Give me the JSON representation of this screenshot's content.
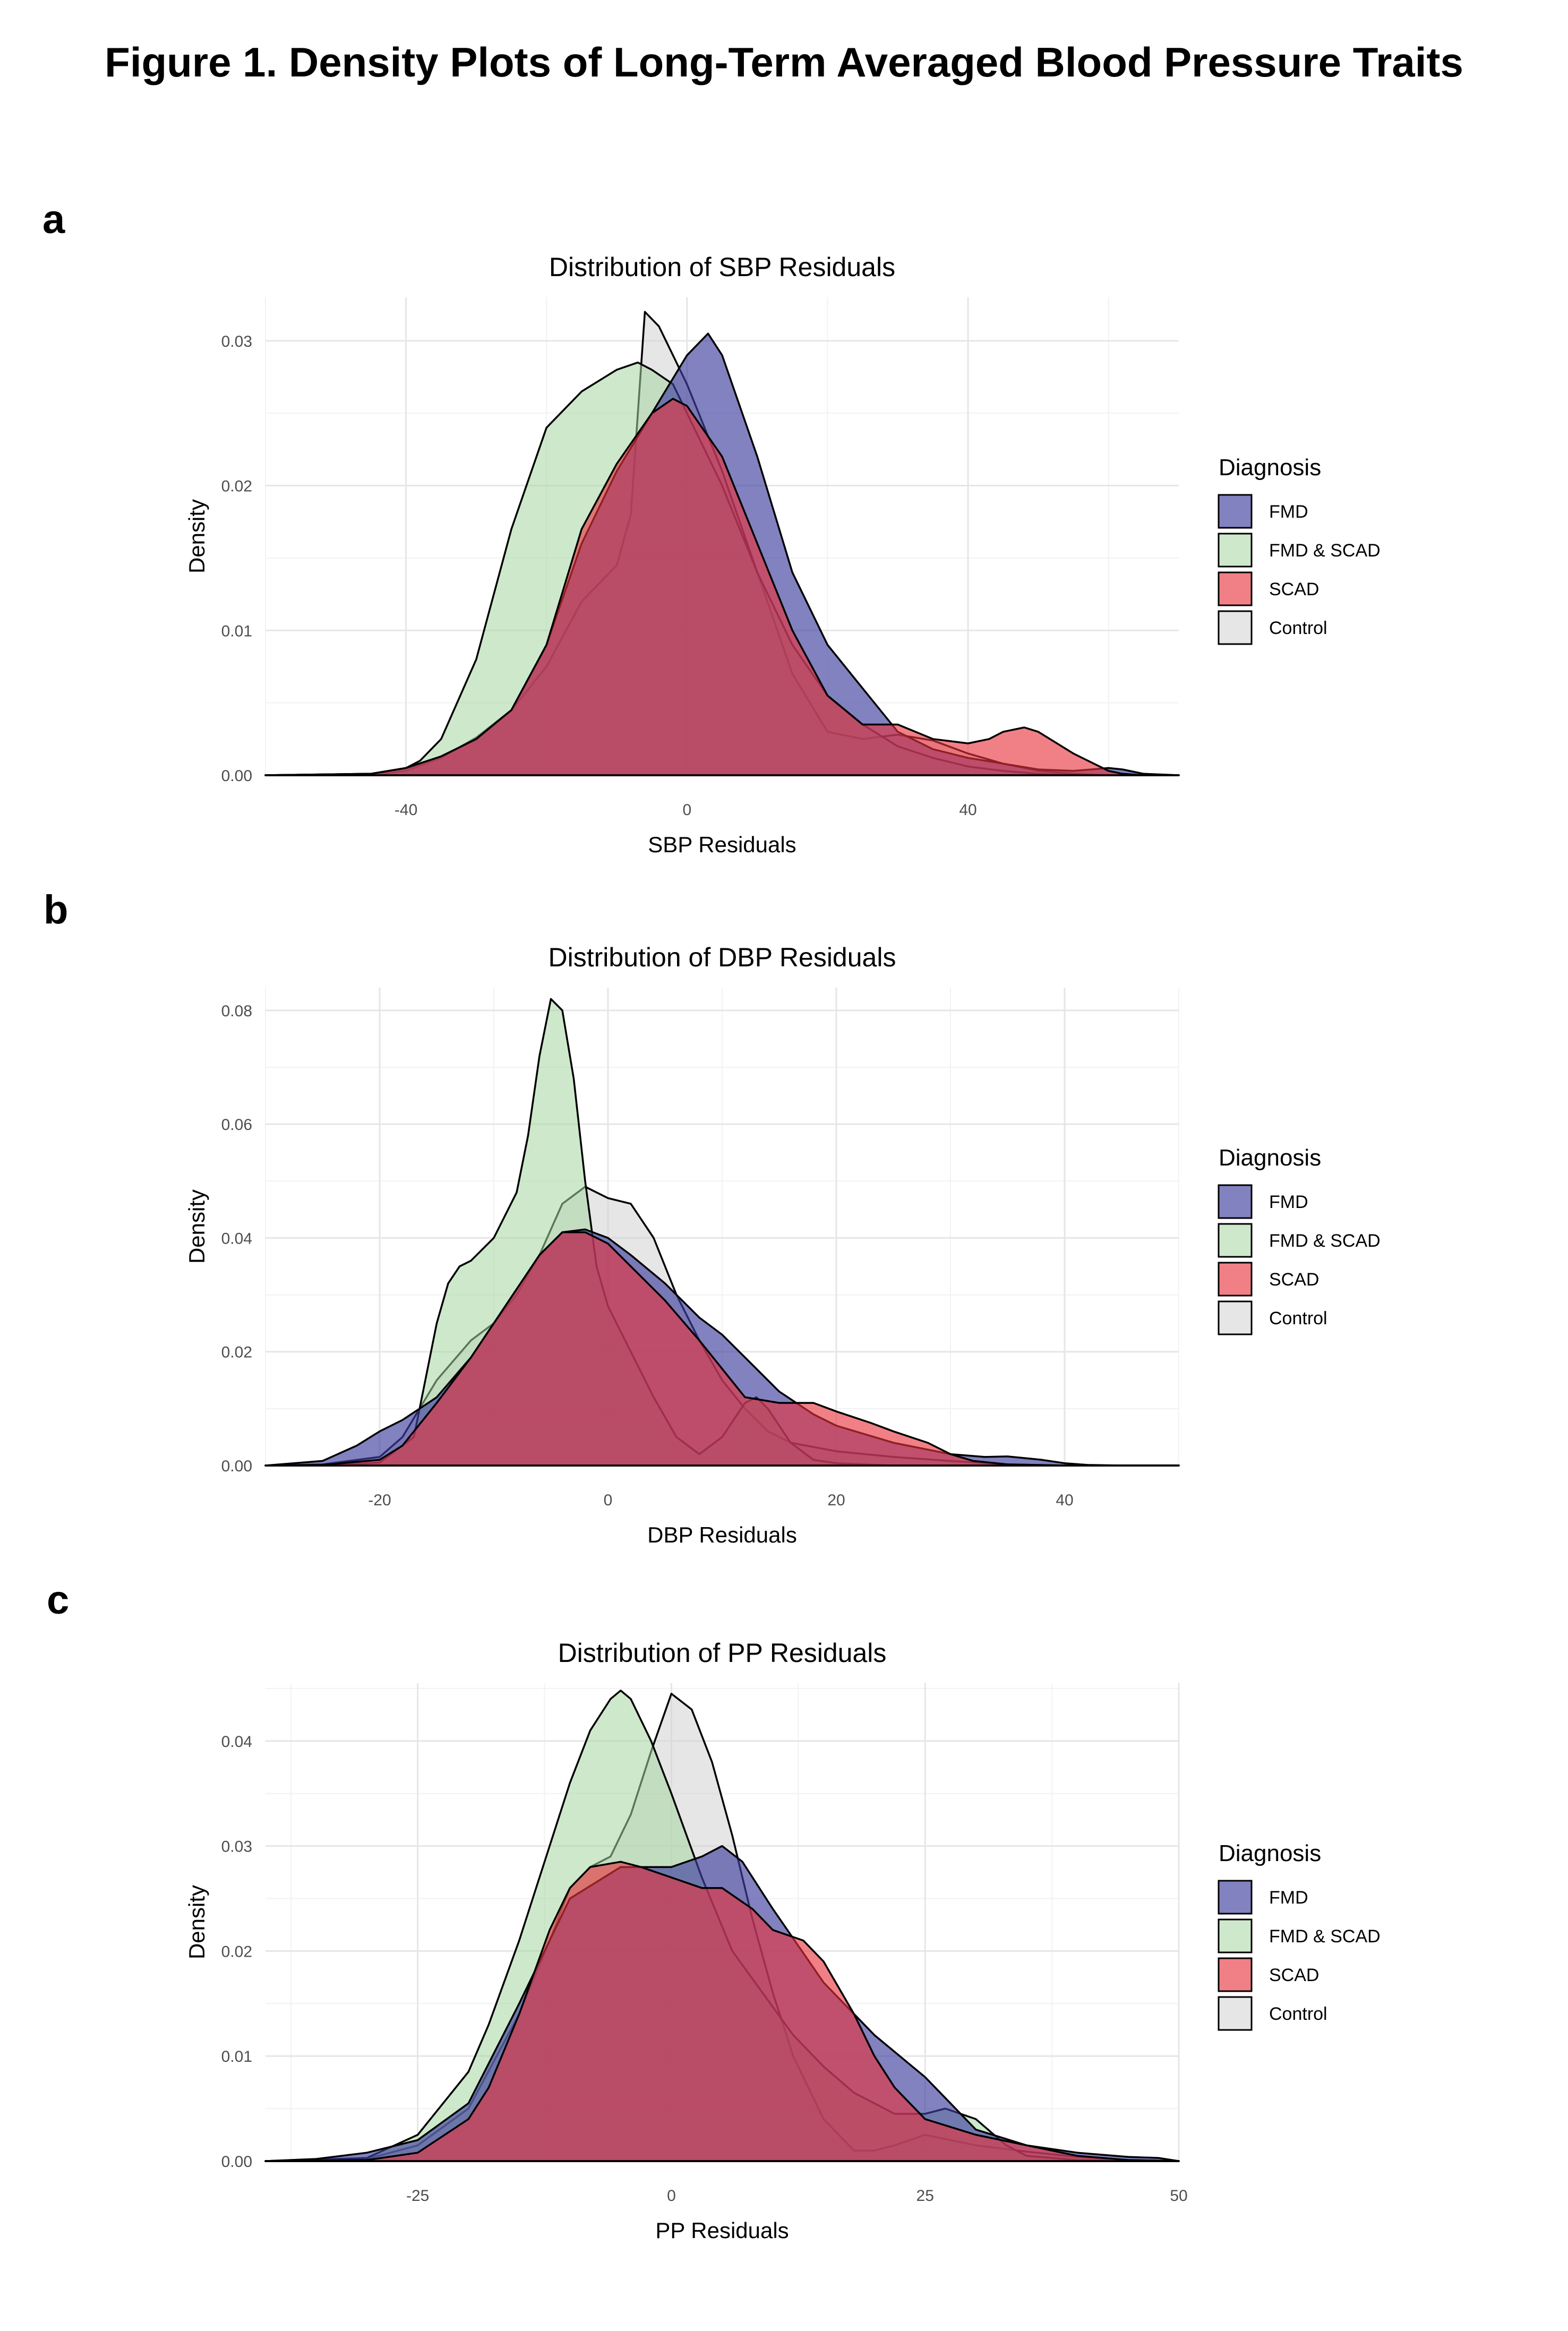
{
  "figure_title": "Figure 1. Density Plots of Long-Term Averaged Blood Pressure Traits",
  "legend_title": "Diagnosis",
  "group_colors": {
    "FMD": "#3f3f9f",
    "FMD & SCAD": "#a5d6a0",
    "SCAD": "#e8323c",
    "Control": "#d2d2d2"
  },
  "group_opacity": {
    "FMD": 0.65,
    "FMD & SCAD": 0.55,
    "SCAD": 0.62,
    "Control": 0.55
  },
  "chart_data": [
    {
      "panel_label": "a",
      "type": "area",
      "title": "Distribution of SBP Residuals",
      "xlabel": "SBP Residuals",
      "ylabel": "Density",
      "xlim": [
        -60,
        70
      ],
      "ylim": [
        0,
        0.033
      ],
      "xticks": [
        -40,
        0,
        40
      ],
      "xtick_labels": [
        "-40",
        "0",
        "40"
      ],
      "yticks": [
        0,
        0.01,
        0.02,
        0.03
      ],
      "ytick_labels": [
        "0.00",
        "0.01",
        "0.02",
        "0.03"
      ],
      "grid": true,
      "legend": [
        "FMD",
        "FMD & SCAD",
        "SCAD",
        "Control"
      ],
      "series": [
        {
          "name": "Control",
          "x": [
            -60,
            -45,
            -40,
            -35,
            -30,
            -25,
            -20,
            -15,
            -10,
            -8,
            -6,
            -4,
            -2,
            0,
            5,
            10,
            15,
            20,
            25,
            30,
            35,
            40,
            45,
            50,
            55,
            60,
            65,
            70
          ],
          "y": [
            0,
            0,
            0.0003,
            0.0012,
            0.0026,
            0.0045,
            0.0075,
            0.012,
            0.0145,
            0.018,
            0.032,
            0.031,
            0.029,
            0.027,
            0.021,
            0.014,
            0.007,
            0.003,
            0.0025,
            0.0028,
            0.0024,
            0.0015,
            0.0008,
            0.0003,
            0.0001,
            0,
            0,
            0
          ]
        },
        {
          "name": "FMD & SCAD",
          "x": [
            -60,
            -45,
            -40,
            -38,
            -35,
            -30,
            -25,
            -20,
            -15,
            -10,
            -7,
            -5,
            -2,
            0,
            5,
            10,
            15,
            20,
            25,
            30,
            35,
            40,
            45,
            50,
            55,
            60,
            65,
            70
          ],
          "y": [
            0,
            0.0001,
            0.0005,
            0.001,
            0.0025,
            0.008,
            0.017,
            0.024,
            0.0265,
            0.028,
            0.0285,
            0.028,
            0.027,
            0.025,
            0.02,
            0.014,
            0.009,
            0.0055,
            0.0035,
            0.002,
            0.0012,
            0.0006,
            0.0003,
            0.0001,
            0,
            0,
            0,
            0
          ]
        },
        {
          "name": "FMD",
          "x": [
            -60,
            -45,
            -40,
            -35,
            -30,
            -25,
            -20,
            -15,
            -10,
            -5,
            0,
            3,
            5,
            10,
            15,
            20,
            25,
            30,
            35,
            40,
            45,
            50,
            55,
            60,
            62,
            65,
            70
          ],
          "y": [
            0,
            0.0001,
            0.0005,
            0.0013,
            0.0025,
            0.0045,
            0.009,
            0.016,
            0.021,
            0.025,
            0.029,
            0.0305,
            0.029,
            0.022,
            0.014,
            0.009,
            0.006,
            0.003,
            0.0018,
            0.0012,
            0.0008,
            0.0004,
            0.0003,
            0.0005,
            0.0004,
            0.0001,
            0
          ]
        },
        {
          "name": "SCAD",
          "x": [
            -60,
            -45,
            -40,
            -35,
            -30,
            -25,
            -20,
            -15,
            -10,
            -5,
            -2,
            0,
            5,
            10,
            15,
            20,
            25,
            30,
            35,
            40,
            43,
            45,
            48,
            50,
            55,
            60,
            62,
            65,
            70
          ],
          "y": [
            0,
            0.0001,
            0.0005,
            0.0013,
            0.0025,
            0.0045,
            0.009,
            0.017,
            0.0215,
            0.025,
            0.026,
            0.0255,
            0.022,
            0.016,
            0.01,
            0.0055,
            0.0035,
            0.0035,
            0.0025,
            0.0022,
            0.0025,
            0.003,
            0.0033,
            0.003,
            0.0015,
            0.0003,
            0.0001,
            0,
            0
          ]
        }
      ]
    },
    {
      "panel_label": "b",
      "type": "area",
      "title": "Distribution of DBP Residuals",
      "xlabel": "DBP Residuals",
      "ylabel": "Density",
      "xlim": [
        -30,
        50
      ],
      "ylim": [
        0,
        0.084
      ],
      "xticks": [
        -20,
        0,
        20,
        40
      ],
      "xtick_labels": [
        "-20",
        "0",
        "20",
        "40"
      ],
      "yticks": [
        0,
        0.02,
        0.04,
        0.06,
        0.08
      ],
      "ytick_labels": [
        "0.00",
        "0.02",
        "0.04",
        "0.06",
        "0.08"
      ],
      "grid": true,
      "legend": [
        "FMD",
        "FMD & SCAD",
        "SCAD",
        "Control"
      ],
      "series": [
        {
          "name": "Control",
          "x": [
            -30,
            -25,
            -20,
            -18,
            -15,
            -12,
            -10,
            -8,
            -6,
            -4,
            -2,
            0,
            2,
            4,
            6,
            8,
            10,
            12,
            14,
            16,
            20,
            25,
            30,
            35,
            40,
            45,
            50
          ],
          "y": [
            0,
            0.0002,
            0.0015,
            0.005,
            0.015,
            0.022,
            0.025,
            0.03,
            0.037,
            0.046,
            0.049,
            0.047,
            0.046,
            0.04,
            0.03,
            0.022,
            0.015,
            0.01,
            0.006,
            0.004,
            0.0025,
            0.0015,
            0.0008,
            0.0002,
            0,
            0,
            0
          ]
        },
        {
          "name": "FMD & SCAD",
          "x": [
            -30,
            -25,
            -20,
            -17,
            -16,
            -15,
            -14,
            -13,
            -12,
            -10,
            -8,
            -7,
            -6,
            -5,
            -4,
            -3,
            -2,
            -1,
            0,
            2,
            4,
            6,
            8,
            10,
            12,
            13,
            14,
            16,
            18,
            20,
            25,
            30,
            35,
            40,
            50
          ],
          "y": [
            0,
            0,
            0.0005,
            0.005,
            0.015,
            0.025,
            0.032,
            0.035,
            0.036,
            0.04,
            0.048,
            0.058,
            0.072,
            0.082,
            0.08,
            0.068,
            0.05,
            0.035,
            0.028,
            0.02,
            0.012,
            0.005,
            0.002,
            0.005,
            0.011,
            0.012,
            0.01,
            0.004,
            0.001,
            0.0004,
            0,
            0,
            0,
            0,
            0
          ]
        },
        {
          "name": "FMD",
          "x": [
            -30,
            -25,
            -22,
            -20,
            -18,
            -15,
            -12,
            -10,
            -8,
            -6,
            -4,
            -2,
            0,
            2,
            5,
            8,
            10,
            12,
            15,
            18,
            20,
            25,
            30,
            33,
            35,
            38,
            40,
            42,
            45,
            50
          ],
          "y": [
            0,
            0.0008,
            0.0035,
            0.006,
            0.008,
            0.012,
            0.019,
            0.025,
            0.031,
            0.037,
            0.041,
            0.0415,
            0.04,
            0.037,
            0.032,
            0.026,
            0.023,
            0.019,
            0.013,
            0.009,
            0.007,
            0.004,
            0.002,
            0.0015,
            0.0016,
            0.001,
            0.0004,
            0.0001,
            0,
            0
          ]
        },
        {
          "name": "SCAD",
          "x": [
            -30,
            -25,
            -20,
            -18,
            -15,
            -12,
            -10,
            -8,
            -6,
            -4,
            -2,
            0,
            2,
            5,
            8,
            10,
            12,
            15,
            18,
            20,
            23,
            25,
            28,
            30,
            32,
            35,
            40,
            45,
            50
          ],
          "y": [
            0,
            0.0001,
            0.001,
            0.0035,
            0.011,
            0.019,
            0.025,
            0.031,
            0.037,
            0.041,
            0.041,
            0.039,
            0.035,
            0.029,
            0.022,
            0.017,
            0.012,
            0.011,
            0.011,
            0.0095,
            0.0075,
            0.006,
            0.004,
            0.002,
            0.0008,
            0.0002,
            0,
            0,
            0
          ]
        }
      ]
    },
    {
      "panel_label": "c",
      "type": "area",
      "title": "Distribution of PP Residuals",
      "xlabel": "PP Residuals",
      "ylabel": "Density",
      "xlim": [
        -40,
        50
      ],
      "ylim": [
        0,
        0.0455
      ],
      "xticks": [
        -25,
        0,
        25,
        50
      ],
      "xtick_labels": [
        "-25",
        "0",
        "25",
        "50"
      ],
      "yticks": [
        0,
        0.01,
        0.02,
        0.03,
        0.04
      ],
      "ytick_labels": [
        "0.00",
        "0.01",
        "0.02",
        "0.03",
        "0.04"
      ],
      "grid": true,
      "legend": [
        "FMD",
        "FMD & SCAD",
        "SCAD",
        "Control"
      ],
      "series": [
        {
          "name": "Control",
          "x": [
            -40,
            -30,
            -25,
            -20,
            -15,
            -12,
            -10,
            -8,
            -6,
            -4,
            -2,
            0,
            2,
            4,
            6,
            8,
            10,
            12,
            15,
            18,
            20,
            22,
            25,
            30,
            35,
            40,
            45,
            50
          ],
          "y": [
            0,
            0.0002,
            0.0015,
            0.005,
            0.014,
            0.021,
            0.026,
            0.028,
            0.029,
            0.033,
            0.039,
            0.0445,
            0.043,
            0.038,
            0.031,
            0.023,
            0.016,
            0.01,
            0.004,
            0.001,
            0.001,
            0.0015,
            0.0025,
            0.0015,
            0.0009,
            0.0004,
            0.0001,
            0
          ]
        },
        {
          "name": "FMD & SCAD",
          "x": [
            -40,
            -30,
            -25,
            -20,
            -18,
            -15,
            -12,
            -10,
            -8,
            -6,
            -5,
            -4,
            -2,
            0,
            3,
            6,
            9,
            12,
            15,
            18,
            20,
            22,
            25,
            27,
            30,
            33,
            35,
            40,
            45,
            50
          ],
          "y": [
            0,
            0.0003,
            0.0025,
            0.0085,
            0.013,
            0.021,
            0.03,
            0.036,
            0.041,
            0.044,
            0.0448,
            0.044,
            0.04,
            0.035,
            0.027,
            0.02,
            0.016,
            0.012,
            0.009,
            0.0065,
            0.0055,
            0.0045,
            0.0045,
            0.005,
            0.004,
            0.0015,
            0.0005,
            0.0001,
            0,
            0
          ]
        },
        {
          "name": "FMD",
          "x": [
            -40,
            -35,
            -30,
            -25,
            -20,
            -15,
            -10,
            -5,
            0,
            3,
            5,
            7,
            10,
            15,
            20,
            25,
            28,
            30,
            35,
            40,
            45,
            48,
            50
          ],
          "y": [
            0,
            0.0002,
            0.0008,
            0.002,
            0.0055,
            0.015,
            0.025,
            0.028,
            0.028,
            0.029,
            0.03,
            0.0285,
            0.024,
            0.017,
            0.012,
            0.008,
            0.005,
            0.003,
            0.0015,
            0.0008,
            0.0004,
            0.0003,
            0
          ]
        },
        {
          "name": "SCAD",
          "x": [
            -40,
            -30,
            -25,
            -20,
            -18,
            -15,
            -12,
            -10,
            -8,
            -5,
            -3,
            0,
            3,
            5,
            8,
            10,
            13,
            15,
            18,
            20,
            22,
            25,
            30,
            35,
            40,
            45,
            50
          ],
          "y": [
            0,
            0.0001,
            0.0008,
            0.004,
            0.007,
            0.014,
            0.022,
            0.026,
            0.028,
            0.0285,
            0.028,
            0.027,
            0.026,
            0.026,
            0.024,
            0.022,
            0.021,
            0.019,
            0.014,
            0.01,
            0.007,
            0.004,
            0.0025,
            0.0015,
            0.0005,
            0.0001,
            0
          ]
        }
      ]
    }
  ]
}
